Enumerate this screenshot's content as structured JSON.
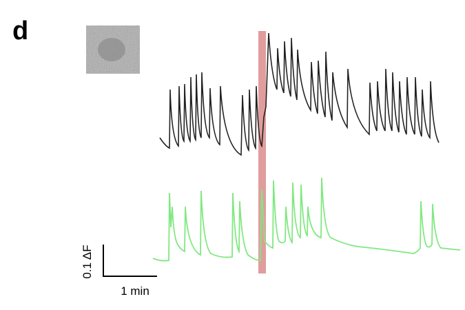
{
  "panel_label": "d",
  "scale_bar": {
    "y_label": "0.1 ΔF",
    "x_label": "1 min"
  }
}
